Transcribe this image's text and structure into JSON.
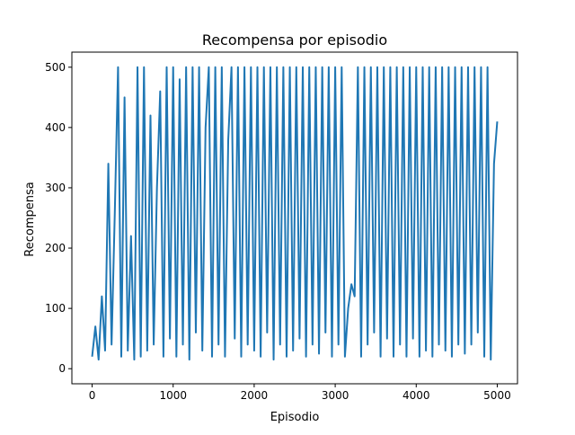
{
  "chart_data": {
    "type": "line",
    "title": "Recompensa por episodio",
    "xlabel": "Episodio",
    "ylabel": "Recompensa",
    "xlim": [
      -250,
      5250
    ],
    "ylim": [
      -25,
      525
    ],
    "xticks": [
      0,
      1000,
      2000,
      3000,
      4000,
      5000
    ],
    "xtick_labels": [
      "0",
      "1000",
      "2000",
      "3000",
      "4000",
      "5000"
    ],
    "yticks": [
      0,
      100,
      200,
      300,
      400,
      500
    ],
    "ytick_labels": [
      "0",
      "100",
      "200",
      "300",
      "400",
      "500"
    ],
    "grid": false,
    "legend": "none",
    "series": [
      {
        "color": "#1f77b4",
        "x": [
          0,
          40,
          80,
          120,
          160,
          200,
          240,
          280,
          320,
          360,
          400,
          440,
          480,
          520,
          560,
          600,
          640,
          680,
          720,
          760,
          800,
          840,
          880,
          920,
          960,
          1000,
          1040,
          1080,
          1120,
          1160,
          1200,
          1240,
          1280,
          1320,
          1360,
          1400,
          1440,
          1480,
          1520,
          1560,
          1600,
          1640,
          1680,
          1720,
          1760,
          1800,
          1840,
          1880,
          1920,
          1960,
          2000,
          2040,
          2080,
          2120,
          2160,
          2200,
          2240,
          2280,
          2320,
          2360,
          2400,
          2440,
          2480,
          2520,
          2560,
          2600,
          2640,
          2680,
          2720,
          2760,
          2800,
          2840,
          2880,
          2920,
          2960,
          3000,
          3040,
          3080,
          3120,
          3160,
          3200,
          3240,
          3280,
          3320,
          3360,
          3400,
          3440,
          3480,
          3520,
          3560,
          3600,
          3640,
          3680,
          3720,
          3760,
          3800,
          3840,
          3880,
          3920,
          3960,
          4000,
          4040,
          4080,
          4120,
          4160,
          4200,
          4240,
          4280,
          4320,
          4360,
          4400,
          4440,
          4480,
          4520,
          4560,
          4600,
          4640,
          4680,
          4720,
          4760,
          4800,
          4840,
          4880,
          4920,
          4960,
          5000
        ],
        "y": [
          20,
          70,
          15,
          120,
          30,
          340,
          40,
          260,
          500,
          20,
          450,
          30,
          220,
          15,
          500,
          20,
          500,
          30,
          420,
          40,
          300,
          460,
          20,
          500,
          50,
          500,
          20,
          480,
          40,
          500,
          15,
          500,
          60,
          500,
          30,
          400,
          500,
          20,
          500,
          40,
          500,
          20,
          380,
          500,
          50,
          500,
          20,
          500,
          40,
          500,
          30,
          500,
          20,
          500,
          60,
          500,
          15,
          500,
          40,
          500,
          20,
          500,
          30,
          500,
          50,
          500,
          20,
          500,
          40,
          500,
          25,
          500,
          60,
          500,
          20,
          500,
          40,
          500,
          20,
          100,
          140,
          120,
          500,
          20,
          500,
          40,
          500,
          60,
          500,
          20,
          500,
          50,
          500,
          20,
          500,
          40,
          500,
          20,
          500,
          50,
          500,
          20,
          500,
          30,
          500,
          20,
          500,
          40,
          500,
          30,
          500,
          20,
          500,
          40,
          500,
          25,
          500,
          40,
          500,
          60,
          500,
          20,
          500,
          15,
          340,
          410
        ]
      }
    ]
  }
}
